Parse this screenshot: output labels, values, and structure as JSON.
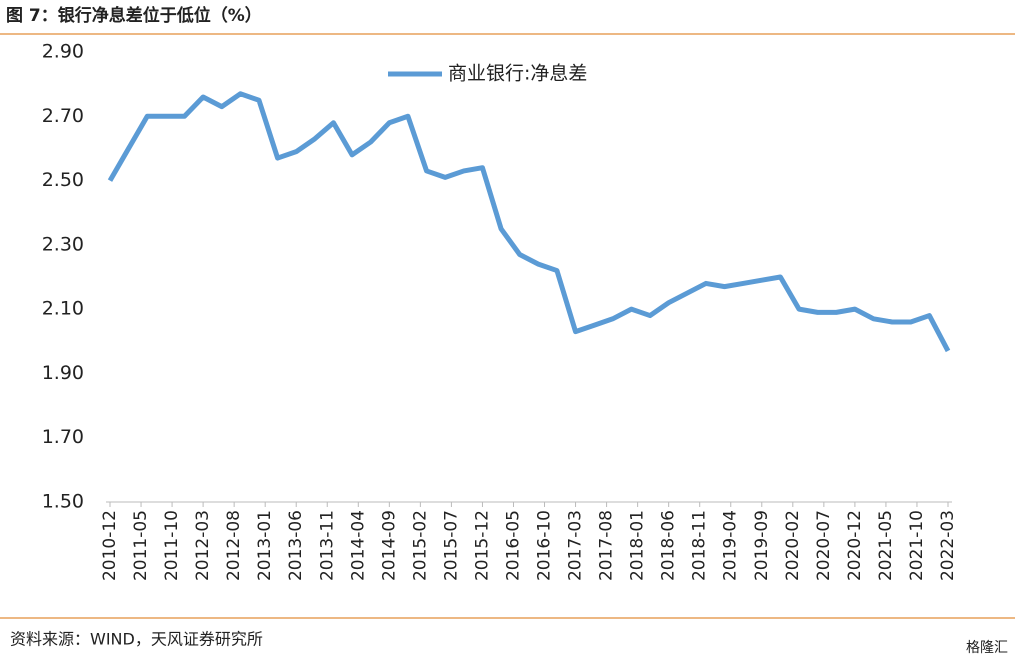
{
  "title": "图 7：银行净息差位于低位（%）",
  "source": "资料来源：WIND，天风证券研究所",
  "watermark": "格隆汇",
  "chart_data": {
    "type": "line",
    "x": [
      "2010-12",
      "2011-03",
      "2011-06",
      "2011-09",
      "2011-12",
      "2012-03",
      "2012-06",
      "2012-09",
      "2012-12",
      "2013-03",
      "2013-06",
      "2013-09",
      "2013-12",
      "2014-03",
      "2014-06",
      "2014-09",
      "2014-12",
      "2015-03",
      "2015-06",
      "2015-09",
      "2015-12",
      "2016-03",
      "2016-06",
      "2016-09",
      "2016-12",
      "2017-03",
      "2017-06",
      "2017-09",
      "2017-12",
      "2018-03",
      "2018-06",
      "2018-09",
      "2018-12",
      "2019-03",
      "2019-06",
      "2019-09",
      "2019-12",
      "2020-03",
      "2020-06",
      "2020-09",
      "2020-12",
      "2021-03",
      "2021-06",
      "2021-09",
      "2021-12",
      "2022-03"
    ],
    "series": [
      {
        "name": "商业银行:净息差",
        "color": "#5b9bd5",
        "values": [
          2.5,
          2.6,
          2.7,
          2.7,
          2.7,
          2.76,
          2.73,
          2.77,
          2.75,
          2.57,
          2.59,
          2.63,
          2.68,
          2.58,
          2.62,
          2.68,
          2.7,
          2.53,
          2.51,
          2.53,
          2.54,
          2.35,
          2.27,
          2.24,
          2.22,
          2.03,
          2.05,
          2.07,
          2.1,
          2.08,
          2.12,
          2.15,
          2.18,
          2.17,
          2.18,
          2.19,
          2.2,
          2.1,
          2.09,
          2.09,
          2.1,
          2.07,
          2.06,
          2.06,
          2.08,
          1.97
        ]
      }
    ],
    "ylim": [
      1.5,
      2.9
    ],
    "yticks": [
      {
        "value": 1.5,
        "label": "1.50"
      },
      {
        "value": 1.7,
        "label": "1.70"
      },
      {
        "value": 1.9,
        "label": "1.90"
      },
      {
        "value": 2.1,
        "label": "2.10"
      },
      {
        "value": 2.3,
        "label": "2.30"
      },
      {
        "value": 2.5,
        "label": "2.50"
      },
      {
        "value": 2.7,
        "label": "2.70"
      },
      {
        "value": 2.9,
        "label": "2.90"
      }
    ],
    "xticks": [
      "2010-12",
      "2011-05",
      "2011-10",
      "2012-03",
      "2012-08",
      "2013-01",
      "2013-06",
      "2013-11",
      "2014-04",
      "2014-09",
      "2015-02",
      "2015-07",
      "2015-12",
      "2016-05",
      "2016-10",
      "2017-03",
      "2017-08",
      "2018-01",
      "2018-06",
      "2018-11",
      "2019-04",
      "2019-09",
      "2020-02",
      "2020-07",
      "2020-12",
      "2021-05",
      "2021-10",
      "2022-03"
    ],
    "legend": "top"
  }
}
